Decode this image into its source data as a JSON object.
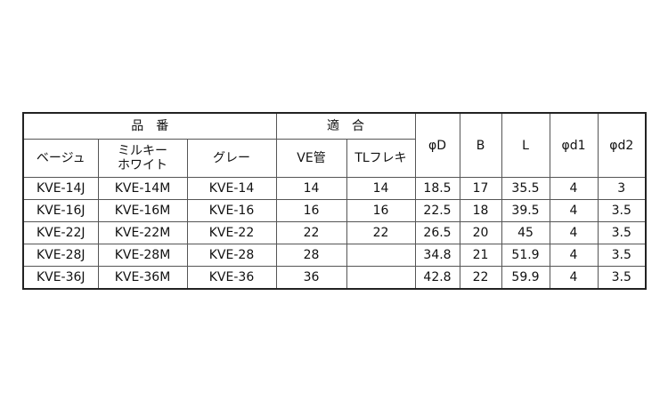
{
  "header": {
    "group_part": "品　番",
    "group_fit": "適　合",
    "beige": "ベージュ",
    "milky_white": "ミルキーホワイト",
    "gray": "グレー",
    "ve_pipe": "VE管",
    "tl_flex": "TLフレキ",
    "phiD": "φD",
    "B": "B",
    "L": "L",
    "phid1": "φd1",
    "phid2": "φd2"
  },
  "rows": [
    [
      "KVE-14J",
      "KVE-14M",
      "KVE-14",
      "14",
      "14",
      "18.5",
      "17",
      "35.5",
      "4",
      "3"
    ],
    [
      "KVE-16J",
      "KVE-16M",
      "KVE-16",
      "16",
      "16",
      "22.5",
      "18",
      "39.5",
      "4",
      "3.5"
    ],
    [
      "KVE-22J",
      "KVE-22M",
      "KVE-22",
      "22",
      "22",
      "26.5",
      "20",
      "45",
      "4",
      "3.5"
    ],
    [
      "KVE-28J",
      "KVE-28M",
      "KVE-28",
      "28",
      "",
      "34.8",
      "21",
      "51.9",
      "4",
      "3.5"
    ],
    [
      "KVE-36J",
      "KVE-36M",
      "KVE-36",
      "36",
      "",
      "42.8",
      "22",
      "59.9",
      "4",
      "3.5"
    ]
  ]
}
